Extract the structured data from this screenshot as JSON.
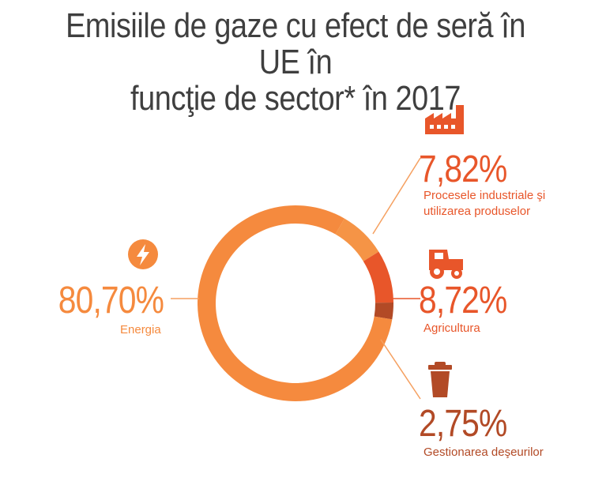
{
  "title_line1": "Emisiile de gaze cu efect de seră în UE în",
  "title_line2": "funcţie de sector* în 2017",
  "colors": {
    "title": "#3f3f3f",
    "energia": "#f58a3e",
    "procesele": "#f59446",
    "agricultura": "#e8562a",
    "deseuri": "#b24a26",
    "leader": "#f5a060"
  },
  "chart_data": {
    "type": "pie",
    "variant": "donut",
    "title": "Emisiile de gaze cu efect de seră în UE în funcţie de sector* în 2017",
    "slices": [
      {
        "name": "Energia",
        "value": 80.7,
        "label": "80,70%",
        "icon": "lightning-icon"
      },
      {
        "name": "Procesele industriale şi utilizarea produselor",
        "value": 7.82,
        "label": "7,82%",
        "icon": "factory-icon"
      },
      {
        "name": "Agricultura",
        "value": 8.72,
        "label": "8,72%",
        "icon": "tractor-icon"
      },
      {
        "name": "Gestionarea deşeurilor",
        "value": 2.75,
        "label": "2,75%",
        "icon": "trash-can-icon"
      }
    ]
  },
  "labels": {
    "energia_pct": "80,70%",
    "energia_name": "Energia",
    "procesele_pct": "7,82%",
    "procesele_name_1": "Procesele industriale şi",
    "procesele_name_2": "utilizarea produselor",
    "agricultura_pct": "8,72%",
    "agricultura_name": "Agricultura",
    "deseuri_pct": "2,75%",
    "deseuri_name": "Gestionarea deşeurilor"
  }
}
